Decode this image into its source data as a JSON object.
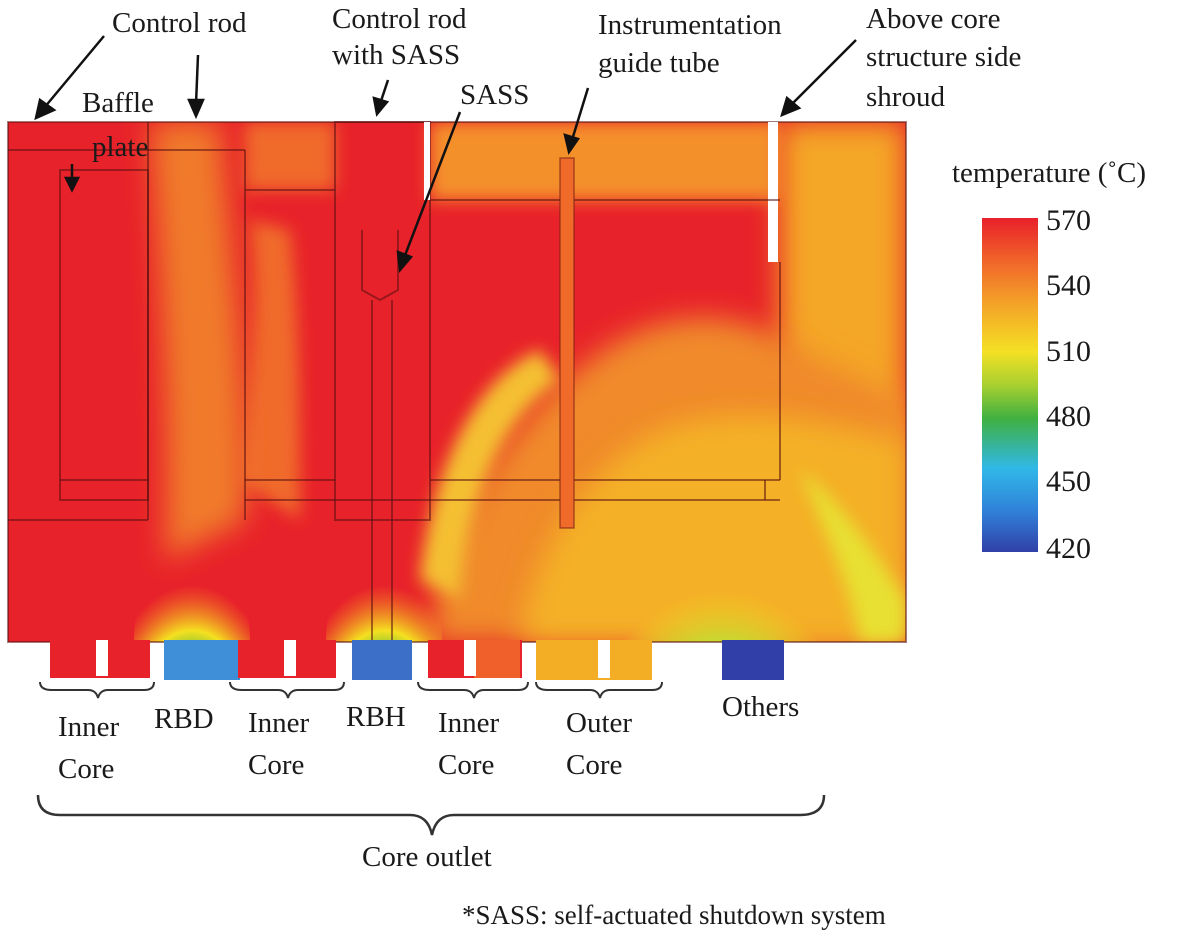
{
  "labels": {
    "control_rod_left": "Control rod",
    "baffle_plate_1": "Baffle",
    "baffle_plate_2": "plate",
    "control_rod_with_sass_1": "Control rod",
    "control_rod_with_sass_2": "with SASS",
    "sass": "SASS",
    "instrumentation_1": "Instrumentation",
    "instrumentation_2": "guide tube",
    "above_core_1": "Above core",
    "above_core_2": "structure side",
    "above_core_3": "shroud"
  },
  "regions": {
    "inner_core_1a": "Inner",
    "inner_core_1b": "Core",
    "rbd": "RBD",
    "inner_core_2a": "Inner",
    "inner_core_2b": "Core",
    "rbh": "RBH",
    "inner_core_3a": "Inner",
    "inner_core_3b": "Core",
    "outer_core_a": "Outer",
    "outer_core_b": "Core",
    "others": "Others",
    "core_outlet": "Core outlet"
  },
  "footnote": "*SASS: self-actuated shutdown system",
  "legend": {
    "title": "temperature (˚C)",
    "ticks": [
      "570",
      "540",
      "510",
      "480",
      "450",
      "420"
    ],
    "colors": {
      "max": "#e8202a",
      "high": "#f0a020",
      "mid_high": "#f4e020",
      "mid": "#40b040",
      "low_mid": "#30b8e8",
      "min": "#3040a8"
    }
  }
}
